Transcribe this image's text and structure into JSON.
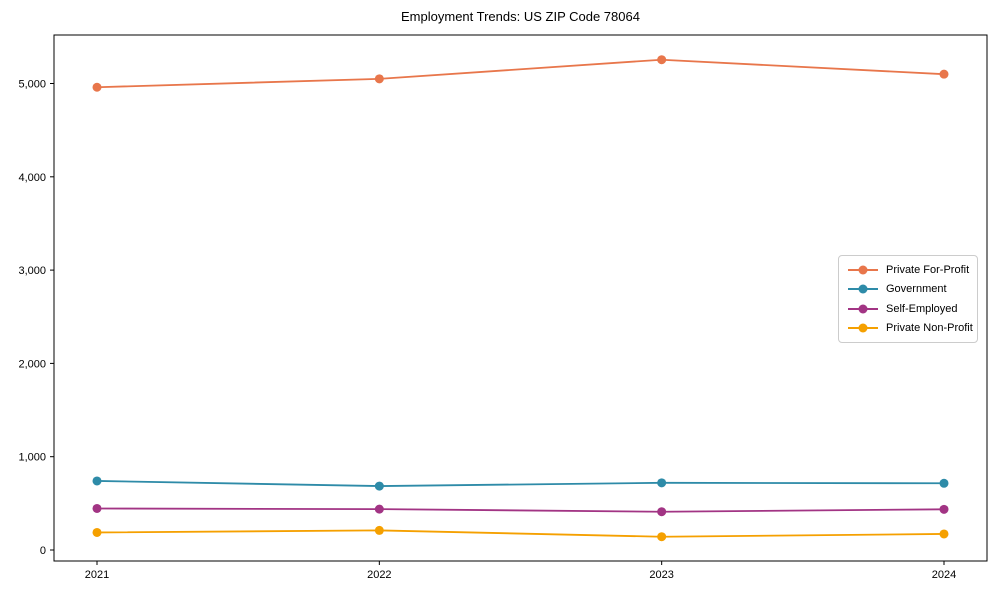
{
  "chart_data": {
    "type": "line",
    "title": "Employment Trends: US ZIP Code 78064",
    "categories": [
      "2021",
      "2022",
      "2023",
      "2024"
    ],
    "series": [
      {
        "name": "Private For-Profit",
        "color": "#E8764B",
        "values": [
          4960,
          5050,
          5255,
          5100
        ]
      },
      {
        "name": "Government",
        "color": "#2E8BA8",
        "values": [
          740,
          685,
          720,
          715
        ]
      },
      {
        "name": "Self-Employed",
        "color": "#A23484",
        "values": [
          445,
          438,
          410,
          436
        ]
      },
      {
        "name": "Private Non-Profit",
        "color": "#F5A000",
        "values": [
          188,
          210,
          142,
          172
        ]
      }
    ],
    "xlabel": "",
    "ylabel": "",
    "ylim": [
      -118,
      5520
    ],
    "yticks": [
      0,
      1000,
      2000,
      3000,
      4000,
      5000
    ],
    "ytick_labels": [
      "0",
      "1,000",
      "2,000",
      "3,000",
      "4,000",
      "5,000"
    ],
    "grid": false,
    "legend_position": "center-right",
    "axis_color": "#000000",
    "text_color": "#000000",
    "background": "#ffffff"
  }
}
